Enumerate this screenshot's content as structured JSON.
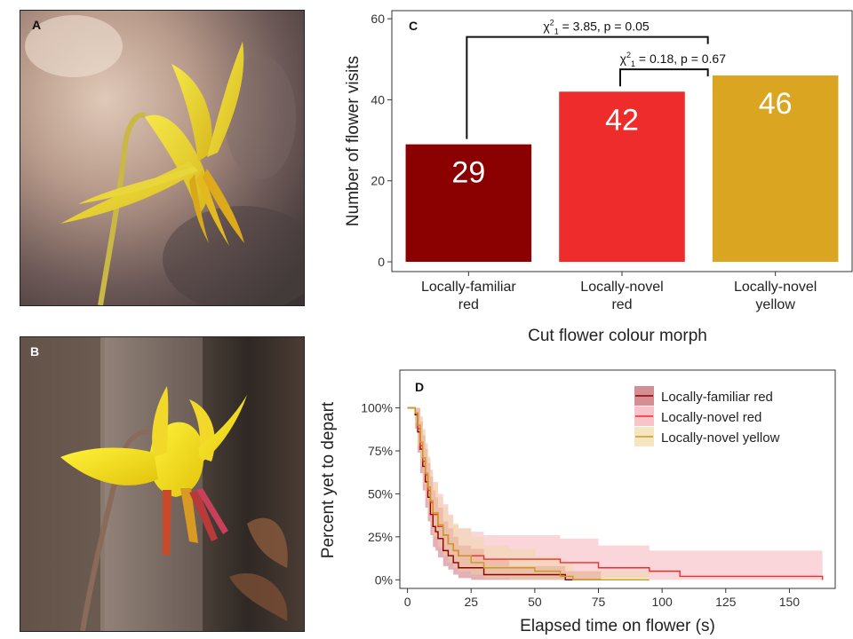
{
  "panels": {
    "a": {
      "letter": "A"
    },
    "b": {
      "letter": "B"
    },
    "c": {
      "letter": "C"
    },
    "d": {
      "letter": "D"
    }
  },
  "chart_data": [
    {
      "type": "bar",
      "panel": "C",
      "categories": [
        [
          "Locally-familiar",
          "red"
        ],
        [
          "Locally-novel",
          "red"
        ],
        [
          "Locally-novel",
          "yellow"
        ]
      ],
      "values": [
        29,
        42,
        46
      ],
      "value_labels": [
        "29",
        "42",
        "46"
      ],
      "colors": [
        "#8b0000",
        "#ee2c2c",
        "#daa520"
      ],
      "xlabel": "Cut flower colour morph",
      "ylabel": "Number of flower visits",
      "ylim": [
        0,
        62
      ],
      "yticks": [
        0,
        20,
        40,
        60
      ],
      "grid": false,
      "comparisons": [
        {
          "from": 0,
          "to": 2,
          "text": "χ²₁ = 3.85, p = 0.05"
        },
        {
          "from": 1,
          "to": 2,
          "text": "χ²₁ = 0.18, p = 0.67"
        }
      ]
    },
    {
      "type": "line",
      "panel": "D",
      "title": "",
      "xlabel": "Elapsed time on flower (s)",
      "ylabel": "Percent yet to depart",
      "xlim": [
        -3,
        168
      ],
      "ylim": [
        -0.05,
        1.22
      ],
      "xticks": [
        0,
        25,
        50,
        75,
        100,
        125,
        150
      ],
      "yticks": [
        0,
        0.25,
        0.5,
        0.75,
        1.0
      ],
      "ytick_labels": [
        "0%",
        "25%",
        "50%",
        "75%",
        "100%"
      ],
      "legend_position": "top-right",
      "grid": false,
      "series": [
        {
          "name": "Locally-familiar red",
          "color": "#8b0000",
          "band": "#c0505a",
          "x": [
            0,
            3,
            4,
            5,
            6,
            7,
            8,
            9,
            10,
            11,
            12,
            14,
            16,
            18,
            20,
            25,
            30,
            40,
            62,
            76
          ],
          "y": [
            1.0,
            0.96,
            0.86,
            0.76,
            0.66,
            0.57,
            0.48,
            0.38,
            0.31,
            0.28,
            0.24,
            0.17,
            0.14,
            0.1,
            0.07,
            0.07,
            0.03,
            0.03,
            0.0,
            0.0
          ],
          "upper": [
            1.0,
            1.0,
            1.0,
            0.92,
            0.84,
            0.76,
            0.68,
            0.6,
            0.52,
            0.48,
            0.42,
            0.34,
            0.3,
            0.25,
            0.2,
            0.18,
            0.12,
            0.08,
            0.05,
            0.05
          ],
          "lower": [
            1.0,
            0.88,
            0.74,
            0.62,
            0.52,
            0.42,
            0.34,
            0.26,
            0.19,
            0.17,
            0.13,
            0.08,
            0.06,
            0.03,
            0.01,
            0.0,
            0.0,
            0.0,
            0.0,
            0.0
          ]
        },
        {
          "name": "Locally-novel red",
          "color": "#ee2c2c",
          "band": "#f4a4ac",
          "x": [
            0,
            3,
            4,
            5,
            6,
            7,
            8,
            9,
            10,
            12,
            14,
            16,
            18,
            20,
            25,
            30,
            40,
            60,
            75,
            95,
            107,
            163
          ],
          "y": [
            1.0,
            0.97,
            0.88,
            0.78,
            0.69,
            0.61,
            0.52,
            0.45,
            0.38,
            0.31,
            0.26,
            0.21,
            0.17,
            0.14,
            0.14,
            0.12,
            0.12,
            0.1,
            0.07,
            0.05,
            0.02,
            0.0
          ],
          "upper": [
            1.0,
            1.0,
            1.0,
            0.95,
            0.87,
            0.79,
            0.71,
            0.64,
            0.57,
            0.5,
            0.44,
            0.38,
            0.32,
            0.3,
            0.28,
            0.26,
            0.26,
            0.24,
            0.2,
            0.17,
            0.17,
            0.02
          ],
          "lower": [
            1.0,
            0.9,
            0.75,
            0.64,
            0.55,
            0.47,
            0.38,
            0.32,
            0.25,
            0.2,
            0.16,
            0.12,
            0.09,
            0.06,
            0.06,
            0.05,
            0.04,
            0.02,
            0.01,
            0.0,
            0.0,
            0.0
          ]
        },
        {
          "name": "Locally-novel yellow",
          "color": "#c89c1c",
          "band": "#f0d8a0",
          "x": [
            0,
            3,
            4,
            5,
            6,
            7,
            8,
            9,
            10,
            12,
            14,
            16,
            18,
            20,
            25,
            30,
            40,
            50,
            60,
            65,
            95
          ],
          "y": [
            1.0,
            0.97,
            0.9,
            0.8,
            0.71,
            0.62,
            0.54,
            0.46,
            0.39,
            0.32,
            0.26,
            0.21,
            0.17,
            0.14,
            0.1,
            0.07,
            0.07,
            0.05,
            0.02,
            0.0,
            0.0
          ],
          "upper": [
            1.0,
            1.0,
            1.0,
            0.95,
            0.88,
            0.8,
            0.72,
            0.64,
            0.56,
            0.48,
            0.42,
            0.37,
            0.33,
            0.3,
            0.25,
            0.2,
            0.18,
            0.14,
            0.1,
            0.05,
            0.05
          ],
          "lower": [
            1.0,
            0.91,
            0.78,
            0.66,
            0.56,
            0.47,
            0.39,
            0.32,
            0.25,
            0.19,
            0.14,
            0.1,
            0.07,
            0.05,
            0.03,
            0.01,
            0.0,
            0.0,
            0.0,
            0.0,
            0.0
          ]
        }
      ]
    }
  ]
}
